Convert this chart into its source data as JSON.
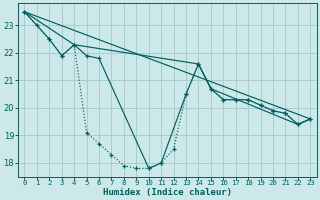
{
  "xlabel": "Humidex (Indice chaleur)",
  "xlim": [
    -0.5,
    23.5
  ],
  "ylim": [
    17.5,
    23.8
  ],
  "yticks": [
    18,
    19,
    20,
    21,
    22,
    23
  ],
  "xticks": [
    0,
    1,
    2,
    3,
    4,
    5,
    6,
    7,
    8,
    9,
    10,
    11,
    12,
    13,
    14,
    15,
    16,
    17,
    18,
    19,
    20,
    21,
    22,
    23
  ],
  "bg_color": "#cce8e8",
  "grid_color": "#aacccc",
  "line_color": "#006060",
  "series": [
    {
      "x": [
        0,
        1,
        2,
        3,
        4,
        5,
        6,
        7,
        8,
        9,
        10,
        11,
        12,
        13,
        14,
        15,
        16,
        17,
        18,
        19,
        20,
        21,
        22,
        23
      ],
      "y": [
        23.5,
        23.0,
        22.5,
        21.9,
        22.3,
        19.1,
        18.7,
        18.3,
        17.9,
        17.8,
        17.8,
        18.0,
        18.5,
        20.5,
        21.6,
        20.7,
        20.3,
        20.3,
        20.3,
        20.1,
        19.9,
        19.8,
        19.4,
        19.6
      ],
      "style": "dotted",
      "marker": "+"
    },
    {
      "x": [
        0,
        2,
        3,
        4,
        5,
        6,
        10,
        11,
        13,
        14,
        15,
        16,
        17,
        18,
        19,
        20,
        21,
        22,
        23
      ],
      "y": [
        23.5,
        22.5,
        21.9,
        22.3,
        21.9,
        21.8,
        17.8,
        18.0,
        20.5,
        21.6,
        20.7,
        20.3,
        20.3,
        20.3,
        20.1,
        19.9,
        19.8,
        19.4,
        19.6
      ],
      "style": "solid",
      "marker": "+"
    },
    {
      "x": [
        0,
        4,
        14,
        15,
        22,
        23
      ],
      "y": [
        23.5,
        22.3,
        21.6,
        20.7,
        19.4,
        19.6
      ],
      "style": "solid",
      "marker": null
    },
    {
      "x": [
        0,
        23
      ],
      "y": [
        23.5,
        19.6
      ],
      "style": "solid",
      "marker": null
    }
  ]
}
